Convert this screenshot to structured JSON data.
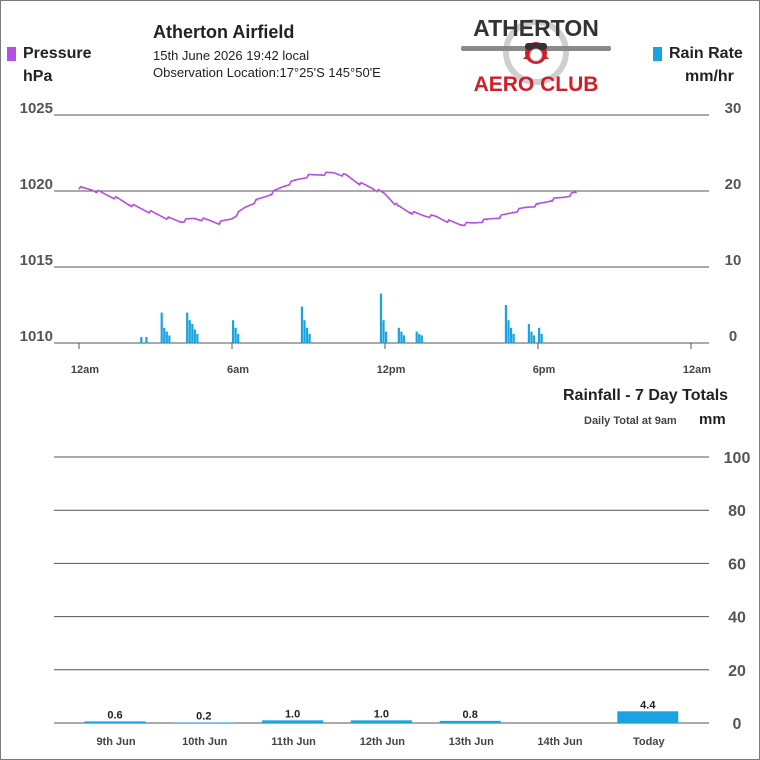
{
  "header": {
    "station": "Atherton Airfield",
    "date_line": "15th June 2026  19:42 local",
    "location_line": "Observation Location:17°25'S 145°50'E",
    "logo_top": "ATHERTON",
    "logo_bottom": "AERO CLUB"
  },
  "legend": {
    "pressure_label": "Pressure",
    "pressure_unit": "hPa",
    "rain_label": "Rain Rate",
    "rain_unit": "mm/hr"
  },
  "colors": {
    "pressure": "#b44fe0",
    "rain": "#1aa3e0",
    "grid": "#555555",
    "text": "#222222"
  },
  "chart_data": [
    {
      "type": "line",
      "ylabel": "Pressure",
      "x_ticks": [
        "12am",
        "6am",
        "12pm",
        "6pm",
        "12am"
      ],
      "x_range_hours": [
        0,
        24
      ],
      "y_left_ticks": [
        "1025",
        "1020",
        "1015",
        "1010"
      ],
      "y_left_range": [
        1010,
        1025
      ],
      "y_right_ticks": [
        "30",
        "20",
        "10",
        "0"
      ],
      "y_right_range": [
        0,
        30
      ],
      "grid": true,
      "series": [
        {
          "name": "Pressure",
          "axis": "left",
          "x": [
            0,
            0.5,
            1,
            1.5,
            2,
            2.5,
            3,
            3.5,
            4,
            4.5,
            5,
            5.5,
            6,
            6.5,
            7,
            7.5,
            8,
            8.5,
            9,
            9.5,
            10,
            10.5,
            11,
            11.5,
            12,
            12.5,
            13,
            13.5,
            14,
            14.5,
            15,
            15.5,
            16,
            16.5,
            17,
            17.5,
            18,
            18.5,
            19,
            19.5
          ],
          "values": [
            1020.2,
            1020.1,
            1019.8,
            1019.5,
            1019.1,
            1018.8,
            1018.5,
            1018.2,
            1018.0,
            1018.2,
            1018.1,
            1017.9,
            1018.2,
            1018.9,
            1019.4,
            1019.8,
            1020.3,
            1020.7,
            1021.0,
            1021.1,
            1021.2,
            1021.0,
            1020.5,
            1020.2,
            1019.8,
            1019.0,
            1018.6,
            1018.4,
            1018.3,
            1018.0,
            1017.8,
            1017.9,
            1018.1,
            1018.3,
            1018.6,
            1018.9,
            1019.1,
            1019.4,
            1019.6,
            1019.9
          ]
        },
        {
          "name": "Rain Rate",
          "axis": "right",
          "type": "bar",
          "x": [
            2.4,
            2.6,
            3.2,
            3.3,
            3.4,
            3.5,
            4.2,
            4.3,
            4.4,
            4.5,
            4.6,
            6.0,
            6.1,
            6.2,
            8.7,
            8.8,
            8.9,
            9.0,
            11.8,
            11.9,
            12.0,
            12.5,
            12.6,
            12.7,
            13.2,
            13.3,
            13.4,
            16.7,
            16.8,
            16.9,
            17.0,
            17.6,
            17.7,
            17.8,
            18.0,
            18.1
          ],
          "values": [
            0.8,
            0.8,
            4.0,
            2.0,
            1.5,
            1.0,
            4.0,
            3.0,
            2.5,
            1.8,
            1.2,
            3.0,
            2.0,
            1.2,
            4.8,
            3.0,
            2.0,
            1.2,
            6.5,
            3.0,
            1.5,
            2.0,
            1.5,
            1.0,
            1.5,
            1.2,
            1.0,
            5.0,
            3.0,
            2.0,
            1.2,
            2.5,
            1.5,
            1.0,
            2.0,
            1.2
          ]
        }
      ]
    },
    {
      "type": "bar",
      "title": "Rainfall - 7 Day Totals",
      "subtitle": "Daily Total at 9am",
      "ylabel": "mm",
      "categories": [
        "9th Jun",
        "10th Jun",
        "11th Jun",
        "12th Jun",
        "13th Jun",
        "14th Jun",
        "Today"
      ],
      "values": [
        0.6,
        0.2,
        1.0,
        1.0,
        0.8,
        null,
        4.4
      ],
      "data_labels": [
        "0.6",
        "0.2",
        "1.0",
        "1.0",
        "0.8",
        "",
        "4.4"
      ],
      "y_ticks": [
        "100",
        "80",
        "60",
        "40",
        "20",
        "0"
      ],
      "ylim": [
        0,
        100
      ],
      "grid": true
    }
  ]
}
